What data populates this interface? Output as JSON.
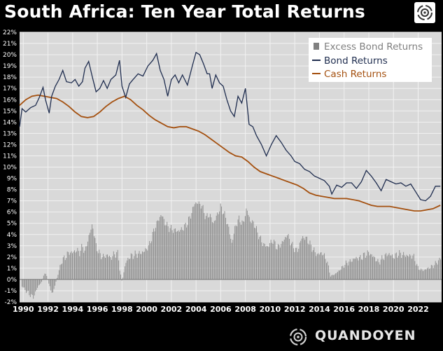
{
  "title": "South Africa: Ten Year Total Returns",
  "brand": {
    "name": "QUANDOYEN",
    "logo_icon": "quandoyen-logo-icon",
    "header_icon": "quandoyen-badge-icon"
  },
  "colors": {
    "bond": "#1f2d4f",
    "cash": "#a4500f",
    "excess": "#8a8a8a",
    "plot_bg": "#d9d9d9",
    "grid": "#f2f2f2"
  },
  "chart_data": {
    "type": "line",
    "x_range": [
      1989.7,
      2023.9
    ],
    "ylim": [
      -2,
      22
    ],
    "yticks": [
      "-2%",
      "-1%",
      "0%",
      "1%",
      "2%",
      "3%",
      "4%",
      "5%",
      "6%",
      "7%",
      "8%",
      "9%",
      "10%",
      "11%",
      "12%",
      "13%",
      "14%",
      "15%",
      "16%",
      "17%",
      "18%",
      "19%",
      "20%",
      "21%",
      "22%"
    ],
    "xticks": [
      "1990",
      "1992",
      "1994",
      "1996",
      "1998",
      "2000",
      "2002",
      "2004",
      "2006",
      "2008",
      "2010",
      "2012",
      "2014",
      "2016",
      "2018",
      "2020",
      "2022"
    ],
    "grid": true,
    "legend_position": "top-right",
    "series": [
      {
        "name": "Excess Bond Returns",
        "kind": "bar",
        "x": [
          1989.9,
          1990.2,
          1990.5,
          1990.8,
          1991.0,
          1991.2,
          1991.5,
          1991.7,
          1991.9,
          1992.2,
          1992.4,
          1992.6,
          1992.9,
          1993.1,
          1993.4,
          1993.7,
          1994.0,
          1994.3,
          1994.6,
          1994.8,
          1995.0,
          1995.3,
          1995.6,
          1995.9,
          1996.2,
          1996.5,
          1996.8,
          1997.1,
          1997.4,
          1997.7,
          1997.8,
          1998.0,
          1998.3,
          1998.6,
          1999.0,
          1999.4,
          1999.8,
          2000.2,
          2000.6,
          2000.9,
          2001.2,
          2001.5,
          2001.8,
          2002.2,
          2002.6,
          2003.0,
          2003.3,
          2003.6,
          2003.9,
          2004.2,
          2004.5,
          2004.8,
          2005.1,
          2005.4,
          2005.7,
          2006.0,
          2006.3,
          2006.6,
          2006.9,
          2007.2,
          2007.5,
          2007.8,
          2008.1,
          2008.4,
          2008.7,
          2009.0,
          2009.4,
          2009.8,
          2010.2,
          2010.6,
          2011.0,
          2011.4,
          2011.8,
          2012.2,
          2012.6,
          2013.0,
          2013.4,
          2013.8,
          2014.2,
          2014.6,
          2014.9,
          2015.3,
          2015.7,
          2016.1,
          2016.5,
          2016.9,
          2017.3,
          2017.7,
          2018.0,
          2018.4,
          2018.8,
          2019.2,
          2019.6,
          2020.0,
          2020.4,
          2020.8,
          2021.2,
          2021.6,
          2022.0,
          2022.4,
          2022.8,
          2023.2,
          2023.6,
          2023.85
        ],
        "values": [
          -0.6,
          -1.0,
          -1.3,
          -1.6,
          -1.1,
          -0.6,
          -0.2,
          0.6,
          0.3,
          -0.9,
          -1.2,
          -0.4,
          0.8,
          1.6,
          2.0,
          2.4,
          2.4,
          2.6,
          2.4,
          3.0,
          2.4,
          3.8,
          4.9,
          3.0,
          2.2,
          2.0,
          2.2,
          1.9,
          2.3,
          2.3,
          1.0,
          -0.2,
          1.5,
          2.0,
          2.2,
          2.3,
          2.5,
          3.0,
          4.4,
          5.2,
          5.8,
          5.0,
          4.6,
          4.4,
          4.3,
          4.6,
          5.0,
          5.8,
          6.8,
          6.8,
          6.5,
          5.5,
          5.8,
          5.0,
          5.7,
          6.5,
          5.8,
          4.8,
          3.2,
          4.8,
          5.4,
          4.9,
          6.3,
          5.2,
          5.0,
          4.1,
          3.2,
          2.9,
          3.5,
          2.8,
          3.3,
          4.0,
          3.0,
          2.5,
          3.8,
          3.6,
          2.8,
          2.2,
          2.4,
          1.7,
          0.3,
          0.5,
          0.9,
          1.4,
          1.6,
          1.9,
          1.9,
          2.2,
          2.4,
          2.0,
          1.5,
          2.0,
          2.3,
          2.0,
          2.3,
          2.2,
          2.1,
          2.1,
          1.0,
          0.8,
          1.0,
          1.2,
          1.6,
          1.9
        ]
      },
      {
        "name": "Bond Returns",
        "kind": "line",
        "x": [
          1989.7,
          1989.9,
          1990.2,
          1990.6,
          1991.0,
          1991.3,
          1991.6,
          1991.8,
          1992.1,
          1992.3,
          1992.6,
          1992.9,
          1993.2,
          1993.5,
          1993.9,
          1994.2,
          1994.5,
          1994.8,
          1995.0,
          1995.3,
          1995.6,
          1995.9,
          1996.2,
          1996.5,
          1996.8,
          1997.1,
          1997.5,
          1997.8,
          1998.0,
          1998.3,
          1998.6,
          1998.9,
          1999.3,
          1999.7,
          2000.1,
          2000.5,
          2000.8,
          2001.1,
          2001.4,
          2001.7,
          2002.0,
          2002.3,
          2002.6,
          2002.9,
          2003.3,
          2003.7,
          2004.0,
          2004.3,
          2004.6,
          2004.9,
          2005.1,
          2005.3,
          2005.6,
          2005.9,
          2006.2,
          2006.5,
          2006.8,
          2007.1,
          2007.4,
          2007.7,
          2008.0,
          2008.3,
          2008.6,
          2008.9,
          2009.3,
          2009.7,
          2010.1,
          2010.5,
          2010.9,
          2011.3,
          2011.7,
          2012.0,
          2012.4,
          2012.8,
          2013.2,
          2013.6,
          2014.0,
          2014.4,
          2014.8,
          2015.0,
          2015.4,
          2015.8,
          2016.2,
          2016.6,
          2017.0,
          2017.4,
          2017.8,
          2018.2,
          2018.6,
          2019.0,
          2019.4,
          2019.8,
          2020.2,
          2020.6,
          2021.0,
          2021.4,
          2021.8,
          2022.2,
          2022.6,
          2023.0,
          2023.4,
          2023.8
        ],
        "values": [
          13.6,
          15.2,
          14.9,
          15.3,
          15.5,
          16.2,
          17.1,
          16.0,
          14.8,
          16.3,
          17.2,
          17.8,
          18.6,
          17.6,
          17.5,
          17.8,
          17.2,
          17.6,
          18.8,
          19.4,
          18.0,
          16.7,
          17.0,
          17.7,
          17.0,
          17.8,
          18.2,
          19.5,
          17.2,
          16.2,
          17.4,
          17.8,
          18.3,
          18.1,
          19.0,
          19.5,
          20.1,
          18.6,
          17.8,
          16.3,
          17.8,
          18.2,
          17.5,
          18.2,
          17.3,
          19.0,
          20.2,
          20.0,
          19.2,
          18.3,
          18.3,
          17.0,
          18.2,
          17.5,
          17.2,
          16.0,
          15.0,
          14.5,
          16.3,
          15.7,
          17.0,
          13.8,
          13.6,
          12.8,
          12.0,
          11.0,
          12.0,
          12.8,
          12.2,
          11.5,
          11.0,
          10.5,
          10.3,
          9.8,
          9.6,
          9.2,
          9.0,
          8.8,
          8.3,
          7.6,
          8.4,
          8.2,
          8.6,
          8.6,
          8.1,
          8.7,
          9.7,
          9.2,
          8.6,
          7.9,
          8.9,
          8.7,
          8.5,
          8.6,
          8.3,
          8.5,
          7.8,
          7.1,
          7.0,
          7.4,
          8.3,
          8.3
        ]
      },
      {
        "name": "Cash Returns",
        "kind": "line",
        "x": [
          1989.7,
          1990.2,
          1990.7,
          1991.2,
          1991.7,
          1992.2,
          1992.7,
          1993.2,
          1993.7,
          1994.2,
          1994.7,
          1995.2,
          1995.7,
          1996.2,
          1996.7,
          1997.2,
          1997.7,
          1998.2,
          1998.7,
          1999.2,
          1999.7,
          2000.2,
          2000.7,
          2001.2,
          2001.7,
          2002.2,
          2002.7,
          2003.2,
          2003.7,
          2004.2,
          2004.7,
          2005.2,
          2005.7,
          2006.2,
          2006.7,
          2007.2,
          2007.7,
          2008.2,
          2008.7,
          2009.2,
          2009.7,
          2010.2,
          2010.7,
          2011.2,
          2011.7,
          2012.2,
          2012.7,
          2013.2,
          2013.7,
          2014.2,
          2014.7,
          2015.2,
          2015.7,
          2016.2,
          2016.7,
          2017.2,
          2017.7,
          2018.2,
          2018.7,
          2019.2,
          2019.7,
          2020.2,
          2020.7,
          2021.2,
          2021.7,
          2022.2,
          2022.7,
          2023.2,
          2023.8
        ],
        "values": [
          15.5,
          16.0,
          16.3,
          16.4,
          16.3,
          16.2,
          16.1,
          15.8,
          15.4,
          14.9,
          14.5,
          14.4,
          14.5,
          14.9,
          15.4,
          15.8,
          16.1,
          16.3,
          16.0,
          15.5,
          15.1,
          14.6,
          14.2,
          13.9,
          13.6,
          13.5,
          13.6,
          13.6,
          13.4,
          13.2,
          12.9,
          12.5,
          12.1,
          11.7,
          11.3,
          11.0,
          10.9,
          10.5,
          10.0,
          9.6,
          9.4,
          9.2,
          9.0,
          8.8,
          8.6,
          8.4,
          8.1,
          7.7,
          7.5,
          7.4,
          7.3,
          7.2,
          7.2,
          7.2,
          7.1,
          7.0,
          6.8,
          6.6,
          6.5,
          6.5,
          6.5,
          6.4,
          6.3,
          6.2,
          6.1,
          6.1,
          6.2,
          6.3,
          6.6
        ]
      }
    ]
  }
}
